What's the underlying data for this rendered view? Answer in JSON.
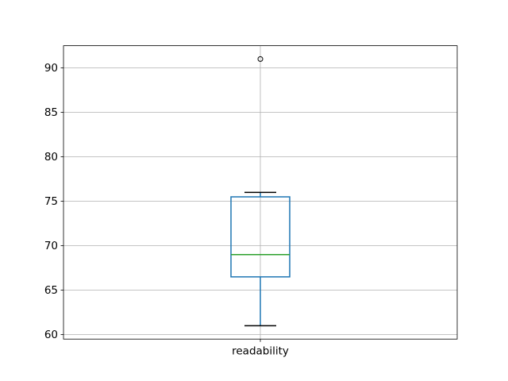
{
  "figure": {
    "background": "#ffffff"
  },
  "chart_data": {
    "type": "boxplot",
    "title": "",
    "xlabel": "",
    "ylabel": "",
    "categories": [
      "readability"
    ],
    "series": [
      {
        "name": "readability",
        "whisker_low": 61,
        "q1": 66.5,
        "median": 69,
        "q3": 75.5,
        "whisker_high": 76,
        "outliers": [
          91
        ]
      }
    ],
    "ylim": [
      59.5,
      92.5
    ],
    "yticks": [
      60,
      65,
      70,
      75,
      80,
      85,
      90
    ],
    "grid": true,
    "legend": false,
    "colors": {
      "box": "#1f77b4",
      "whisker": "#1f77b4",
      "cap": "#000000",
      "median": "#2ca02c",
      "outlier": "#000000",
      "grid": "#b0b0b0",
      "spine": "#000000",
      "tick_label": "#000000"
    }
  }
}
